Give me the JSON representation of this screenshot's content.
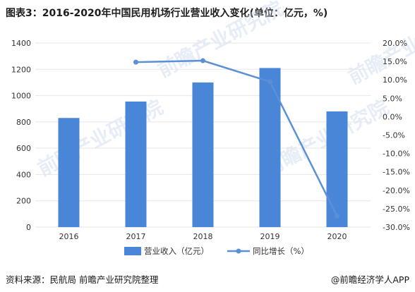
{
  "title": "图表3：2016-2020年中国民用机场行业营业收入变化(单位：亿元，%)",
  "source": "资料来源：民航局 前瞻产业研究院整理",
  "credit": "@前瞻经济学人APP",
  "watermark": "前瞻产业研究院",
  "colors": {
    "bar": "#4a86d8",
    "line": "#5b8fd6",
    "grid": "#e6e6e6"
  },
  "chart_data": {
    "type": "bar+line",
    "categories": [
      "2016",
      "2017",
      "2018",
      "2019",
      "2020"
    ],
    "series": [
      {
        "name": "营业收入（亿元）",
        "type": "bar",
        "axis": "left",
        "values": [
          830,
          955,
          1100,
          1210,
          880
        ]
      },
      {
        "name": "同比增长（%）",
        "type": "line",
        "axis": "right",
        "values": [
          null,
          14.8,
          15.2,
          9.5,
          -27.0
        ]
      }
    ],
    "y_left": {
      "min": 0,
      "max": 1400,
      "ticks": [
        0,
        200,
        400,
        600,
        800,
        1000,
        1200,
        1400
      ]
    },
    "y_right": {
      "min": -30,
      "max": 20,
      "ticks": [
        -30,
        -25,
        -20,
        -15,
        -10,
        -5,
        0,
        5,
        10,
        15,
        20
      ],
      "tick_labels": [
        "-30.0%",
        "-25.0%",
        "-20.0%",
        "-15.0%",
        "-10.0%",
        "-5.0%",
        "0.0%",
        "5.0%",
        "10.0%",
        "15.0%",
        "20.0%"
      ]
    },
    "grid": true,
    "legend": "bottom"
  }
}
